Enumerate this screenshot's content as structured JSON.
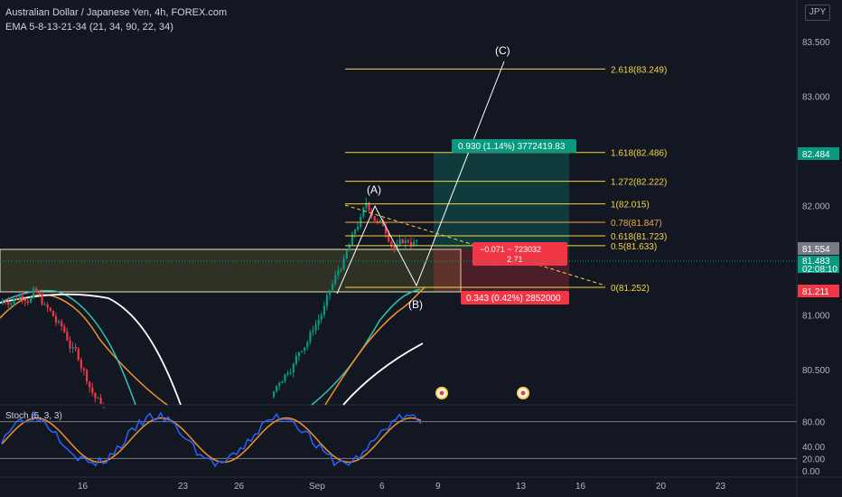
{
  "header": {
    "title": "Australian Dollar / Japanese Yen, 4h, FOREX.com",
    "indicator": "EMA 5-8-13-21-34 (21, 34, 90, 22, 34)",
    "stoch_label": "Stoch (5, 3, 3)",
    "currency": "JPY"
  },
  "chart_data": {
    "type": "candlestick",
    "price_axis": {
      "ticks": [
        "83.500",
        "83.000",
        "82.500",
        "82.000",
        "81.500",
        "81.000",
        "80.500"
      ],
      "min": 80.2,
      "max": 83.75
    },
    "x_ticks": [
      "16",
      "23",
      "26",
      "Sep",
      "6",
      "9",
      "13",
      "16",
      "20",
      "23"
    ],
    "price_labels": [
      {
        "text": "82.484",
        "color": "#089981"
      },
      {
        "text": "81.554",
        "color": "#787b86"
      },
      {
        "text": "81.483",
        "color": "#089981"
      },
      {
        "text": "02:08:10",
        "color": "#089981"
      },
      {
        "text": "81.211",
        "color": "#f23645"
      }
    ],
    "fib_levels": [
      {
        "ratio": "2.618",
        "value": 83.249,
        "label": "2.618(83.249)",
        "color": "#f5d547"
      },
      {
        "ratio": "1.618",
        "value": 82.486,
        "label": "1.618(82.486)",
        "color": "#f5d547"
      },
      {
        "ratio": "1.272",
        "value": 82.222,
        "label": "1.272(82.222)",
        "color": "#f5d547"
      },
      {
        "ratio": "1",
        "value": 82.015,
        "label": "1(82.015)",
        "color": "#f5d547"
      },
      {
        "ratio": "0.78",
        "value": 81.847,
        "label": "0.78(81.847)",
        "color": "#f0a64a"
      },
      {
        "ratio": "0.618",
        "value": 81.723,
        "label": "0.618(81.723)",
        "color": "#f5d547"
      },
      {
        "ratio": "0.5",
        "value": 81.633,
        "label": "0.5(81.633)",
        "color": "#f5d547"
      },
      {
        "ratio": "0",
        "value": 81.252,
        "label": "0(81.252)",
        "color": "#f5d547"
      }
    ],
    "wave_labels": [
      "(A)",
      "(B)",
      "(C)"
    ],
    "position": {
      "target_label": "0.930 (1.14%) 3772419.83",
      "stop_label": "0.343 (0.42%) 2852000",
      "info_line1": "−0.071 ~ 723032",
      "info_line2": "2.71"
    },
    "stoch_axis": {
      "ticks": [
        "80.00",
        "40.00",
        "20.00",
        "0.00"
      ],
      "min": 0,
      "max": 100
    }
  }
}
